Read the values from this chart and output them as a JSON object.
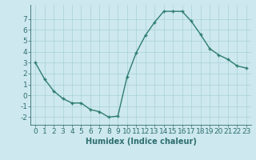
{
  "x": [
    0,
    1,
    2,
    3,
    4,
    5,
    6,
    7,
    8,
    9,
    10,
    11,
    12,
    13,
    14,
    15,
    16,
    17,
    18,
    19,
    20,
    21,
    22,
    23
  ],
  "y": [
    3.0,
    1.5,
    0.4,
    -0.3,
    -0.7,
    -0.7,
    -1.3,
    -1.5,
    -2.0,
    -1.9,
    1.7,
    3.9,
    5.5,
    6.7,
    7.7,
    7.7,
    7.7,
    6.8,
    5.6,
    4.3,
    3.7,
    3.3,
    2.7,
    2.5
  ],
  "line_color": "#2e7d6e",
  "marker": "+",
  "marker_size": 3.5,
  "xlabel": "Humidex (Indice chaleur)",
  "xlim": [
    -0.5,
    23.5
  ],
  "ylim": [
    -2.7,
    8.3
  ],
  "yticks": [
    -2,
    -1,
    0,
    1,
    2,
    3,
    4,
    5,
    6,
    7
  ],
  "xticks": [
    0,
    1,
    2,
    3,
    4,
    5,
    6,
    7,
    8,
    9,
    10,
    11,
    12,
    13,
    14,
    15,
    16,
    17,
    18,
    19,
    20,
    21,
    22,
    23
  ],
  "background_color": "#cde8ef",
  "grid_color": "#aed4db",
  "label_color": "#2e6e6e",
  "font_size": 6.5
}
